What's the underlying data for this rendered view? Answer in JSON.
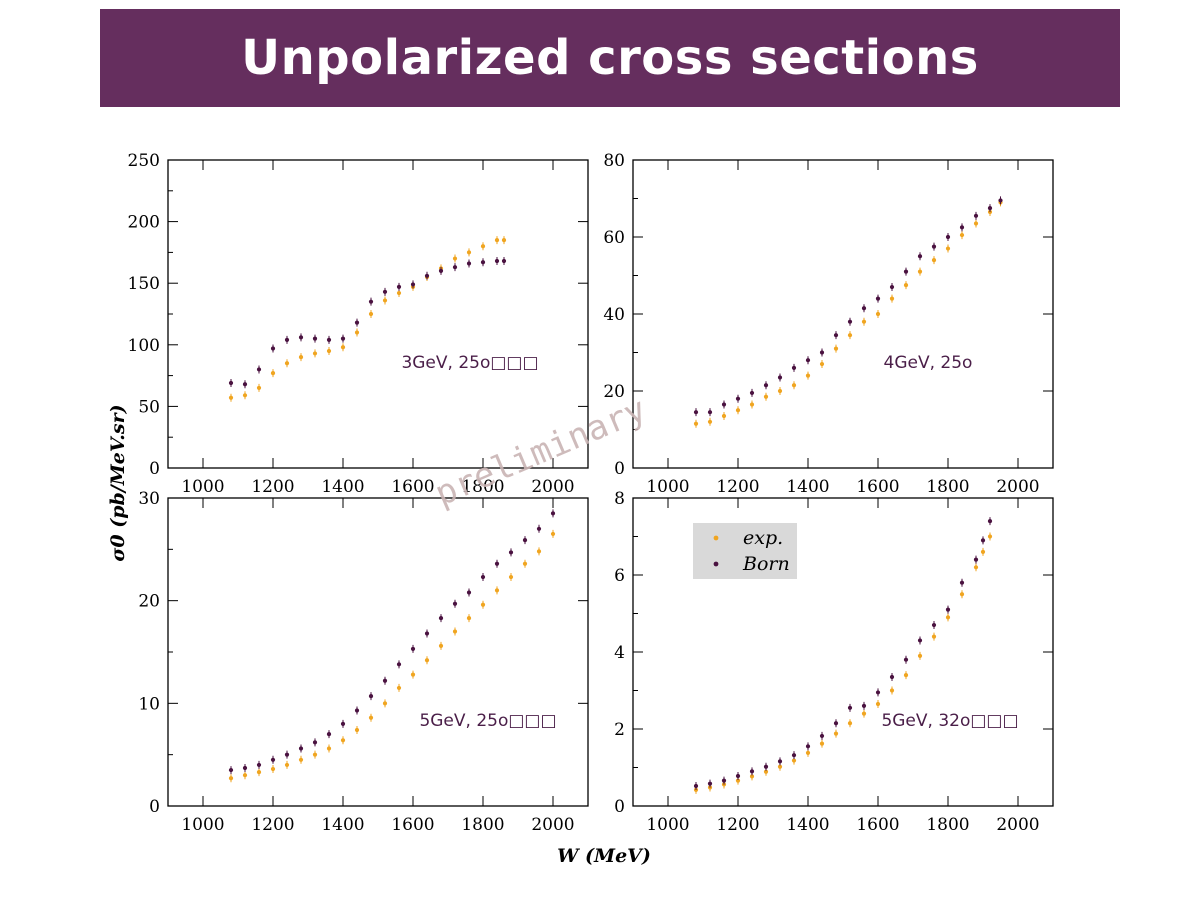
{
  "title": "Unpolarized cross sections",
  "colors": {
    "title_bg": "#652e5e",
    "exp": "#f0a520",
    "born": "#4a1240",
    "label": "#4a1e48"
  },
  "watermark": "preliminary",
  "chart_data": {
    "type": "scatter",
    "xlabel": "W (MeV)",
    "ylabel": "σ0 (pb/MeV.sr)",
    "legend": {
      "placement": "top-left of bottom-right panel",
      "entries": [
        "exp.",
        "Born"
      ]
    },
    "panels": [
      {
        "label": "3GeV, 25o□□□",
        "xlim": [
          900,
          2100
        ],
        "ylim": [
          0,
          250
        ],
        "xticks": [
          1000,
          1200,
          1400,
          1600,
          1800,
          2000
        ],
        "yticks": [
          0,
          50,
          100,
          150,
          200,
          250
        ],
        "series": [
          {
            "name": "exp.",
            "x": [
              1080,
              1120,
              1160,
              1200,
              1240,
              1280,
              1320,
              1360,
              1400,
              1440,
              1480,
              1520,
              1560,
              1600,
              1640,
              1680,
              1720,
              1760,
              1800,
              1840,
              1860
            ],
            "y": [
              57,
              59,
              65,
              77,
              85,
              90,
              93,
              95,
              98,
              110,
              125,
              136,
              142,
              147,
              155,
              162,
              170,
              175,
              180,
              185,
              185
            ]
          },
          {
            "name": "Born",
            "x": [
              1080,
              1120,
              1160,
              1200,
              1240,
              1280,
              1320,
              1360,
              1400,
              1440,
              1480,
              1520,
              1560,
              1600,
              1640,
              1680,
              1720,
              1760,
              1800,
              1840,
              1860
            ],
            "y": [
              69,
              68,
              80,
              97,
              104,
              106,
              105,
              104,
              105,
              118,
              135,
              143,
              147,
              149,
              156,
              160,
              163,
              166,
              167,
              168,
              168
            ]
          }
        ]
      },
      {
        "label": "4GeV, 25o",
        "xlim": [
          900,
          2100
        ],
        "ylim": [
          0,
          80
        ],
        "xticks": [
          1000,
          1200,
          1400,
          1600,
          1800,
          2000
        ],
        "yticks": [
          0,
          20,
          40,
          60,
          80
        ],
        "series": [
          {
            "name": "exp.",
            "x": [
              1080,
              1120,
              1160,
              1200,
              1240,
              1280,
              1320,
              1360,
              1400,
              1440,
              1480,
              1520,
              1560,
              1600,
              1640,
              1680,
              1720,
              1760,
              1800,
              1840,
              1880,
              1920,
              1950
            ],
            "y": [
              11.5,
              12,
              13.5,
              15,
              16.5,
              18.5,
              20,
              21.5,
              24,
              27,
              31,
              34.5,
              38,
              40,
              44,
              47.5,
              51,
              54,
              57,
              60.5,
              63.5,
              66.5,
              69
            ]
          },
          {
            "name": "Born",
            "x": [
              1080,
              1120,
              1160,
              1200,
              1240,
              1280,
              1320,
              1360,
              1400,
              1440,
              1480,
              1520,
              1560,
              1600,
              1640,
              1680,
              1720,
              1760,
              1800,
              1840,
              1880,
              1920,
              1950
            ],
            "y": [
              14.5,
              14.5,
              16.5,
              18,
              19.5,
              21.5,
              23.5,
              26,
              28,
              30,
              34.5,
              38,
              41.5,
              44,
              47,
              51,
              55,
              57.5,
              60,
              62.5,
              65.5,
              67.5,
              69.5
            ]
          }
        ]
      },
      {
        "label": "5GeV, 25o□□□",
        "xlim": [
          900,
          2100
        ],
        "ylim": [
          0,
          30
        ],
        "xticks": [
          1000,
          1200,
          1400,
          1600,
          1800,
          2000
        ],
        "yticks": [
          0,
          10,
          20,
          30
        ],
        "series": [
          {
            "name": "exp.",
            "x": [
              1080,
              1120,
              1160,
              1200,
              1240,
              1280,
              1320,
              1360,
              1400,
              1440,
              1480,
              1520,
              1560,
              1600,
              1640,
              1680,
              1720,
              1760,
              1800,
              1840,
              1880,
              1920,
              1960,
              2000
            ],
            "y": [
              2.7,
              3.0,
              3.3,
              3.6,
              4.0,
              4.5,
              5.0,
              5.6,
              6.4,
              7.4,
              8.6,
              10.0,
              11.5,
              12.8,
              14.2,
              15.6,
              17.0,
              18.3,
              19.6,
              21.0,
              22.3,
              23.6,
              24.8,
              26.5
            ]
          },
          {
            "name": "Born",
            "x": [
              1080,
              1120,
              1160,
              1200,
              1240,
              1280,
              1320,
              1360,
              1400,
              1440,
              1480,
              1520,
              1560,
              1600,
              1640,
              1680,
              1720,
              1760,
              1800,
              1840,
              1880,
              1920,
              1960,
              2000
            ],
            "y": [
              3.5,
              3.7,
              4.0,
              4.5,
              5.0,
              5.6,
              6.2,
              7.0,
              8.0,
              9.3,
              10.7,
              12.2,
              13.8,
              15.3,
              16.8,
              18.3,
              19.7,
              20.8,
              22.3,
              23.6,
              24.7,
              25.9,
              27.0,
              28.5
            ]
          }
        ]
      },
      {
        "label": "5GeV, 32o□□□",
        "xlim": [
          900,
          2100
        ],
        "ylim": [
          0,
          8
        ],
        "xticks": [
          1000,
          1200,
          1400,
          1600,
          1800,
          2000
        ],
        "yticks": [
          0,
          2,
          4,
          6,
          8
        ],
        "series": [
          {
            "name": "exp.",
            "x": [
              1080,
              1120,
              1160,
              1200,
              1240,
              1280,
              1320,
              1360,
              1400,
              1440,
              1480,
              1520,
              1560,
              1600,
              1640,
              1680,
              1720,
              1760,
              1800,
              1840,
              1880,
              1900,
              1920
            ],
            "y": [
              0.42,
              0.48,
              0.56,
              0.66,
              0.77,
              0.89,
              1.02,
              1.18,
              1.38,
              1.62,
              1.88,
              2.15,
              2.4,
              2.65,
              3.0,
              3.4,
              3.9,
              4.4,
              4.9,
              5.5,
              6.2,
              6.6,
              7.0
            ]
          },
          {
            "name": "Born",
            "x": [
              1080,
              1120,
              1160,
              1200,
              1240,
              1280,
              1320,
              1360,
              1400,
              1440,
              1480,
              1520,
              1560,
              1600,
              1640,
              1680,
              1720,
              1760,
              1800,
              1840,
              1880,
              1900,
              1920
            ],
            "y": [
              0.52,
              0.58,
              0.66,
              0.78,
              0.9,
              1.02,
              1.16,
              1.32,
              1.55,
              1.82,
              2.15,
              2.55,
              2.6,
              2.95,
              3.35,
              3.8,
              4.3,
              4.7,
              5.1,
              5.8,
              6.4,
              6.9,
              7.4
            ]
          }
        ]
      }
    ]
  }
}
